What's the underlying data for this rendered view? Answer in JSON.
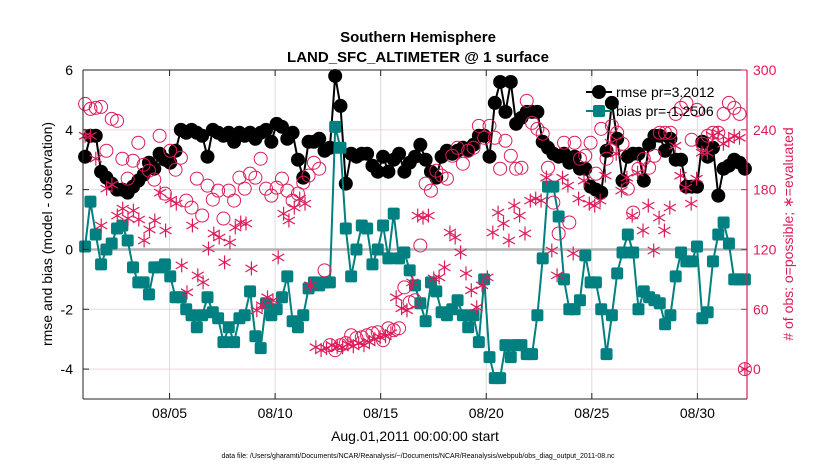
{
  "chart_data": {
    "type": "line",
    "title": [
      "Southern Hemisphere",
      "LAND_SFC_ALTIMETER @ 1 surface"
    ],
    "xlabel": "Aug.01,2011 00:00:00 start",
    "ylabel": "rmse and bias (model - observation)",
    "ylabel_right": "# of obs: o=possible; ∗=evaluated",
    "footer": "data file: /Users/gharamti/Documents/NCAR/Reanalysis/~/Documents/NCAR/Reanalysis/webpub/obs_diag_output_2011-08.nc",
    "x_unit": "days since Aug.01,2011 00:00:00",
    "xlim": [
      -0.1,
      31.35
    ],
    "x_range_days": [
      0,
      31.25
    ],
    "x_ticks": [
      {
        "day": 4,
        "label": "08/05"
      },
      {
        "day": 9,
        "label": "08/10"
      },
      {
        "day": 14,
        "label": "08/15"
      },
      {
        "day": 19,
        "label": "08/20"
      },
      {
        "day": 24,
        "label": "08/25"
      },
      {
        "day": 29,
        "label": "08/30"
      }
    ],
    "ylim": [
      -5,
      6
    ],
    "y_ticks": [
      -4,
      -2,
      0,
      2,
      4,
      6
    ],
    "ylim_right": [
      -30,
      300
    ],
    "y_ticks_right": [
      0,
      60,
      120,
      180,
      240,
      300
    ],
    "grid": true,
    "legend_position": "top-right",
    "colors": {
      "rmse": "#000000",
      "bias": "#008080",
      "counts": "#dc1c5a",
      "zero_line": "#b4b4b4"
    },
    "series": [
      {
        "name": "rmse",
        "legend": "rmse pr=3.2012",
        "axis": "left",
        "marker": "circle",
        "values": [
          3.1,
          3.8,
          3.8,
          2.6,
          2.4,
          2.2,
          2.0,
          2.0,
          1.9,
          2.1,
          2.3,
          2.5,
          2.9,
          2.7,
          3.2,
          3.0,
          2.9,
          3.3,
          4.0,
          3.9,
          4.0,
          3.9,
          3.8,
          3.1,
          4.0,
          3.9,
          3.8,
          3.9,
          3.6,
          3.9,
          3.8,
          3.9,
          3.7,
          3.9,
          4.0,
          3.6,
          4.2,
          4.1,
          3.7,
          3.9,
          3.0,
          2.4,
          3.6,
          3.6,
          3.7,
          3.3,
          3.4,
          5.8,
          4.8,
          2.2,
          3.2,
          3.1,
          3.2,
          3.2,
          2.8,
          2.6,
          3.1,
          2.6,
          3.0,
          3.2,
          2.6,
          2.9,
          3.1,
          3.5,
          3.0,
          2.6,
          2.4,
          3.1,
          3.3,
          3.2,
          3.3,
          3.4,
          3.3,
          3.5,
          3.8,
          3.8,
          3.1,
          4.9,
          5.6,
          4.6,
          5.6,
          4.2,
          4.4,
          4.6,
          4.6,
          4.6,
          3.6,
          3.4,
          3.2,
          3.1,
          3.2,
          2.9,
          3.1,
          2.7,
          2.7,
          2.1,
          2.0,
          1.9,
          3.3,
          4.9,
          3.7,
          2.3,
          3.1,
          3.2,
          3.2,
          2.3,
          3.5,
          3.8,
          3.8,
          3.3,
          3.7,
          3.0,
          3.0,
          2.1,
          2.1,
          2.1,
          3.6,
          3.1,
          3.4,
          1.8,
          2.7,
          2.8,
          3.0,
          2.9,
          2.7
        ]
      },
      {
        "name": "bias",
        "legend": "bias pr=-1.2506",
        "axis": "left",
        "marker": "square",
        "values": [
          0.1,
          1.6,
          0.5,
          -0.5,
          0.0,
          0.2,
          0.7,
          0.8,
          0.3,
          -0.6,
          -1.1,
          -1.1,
          -1.5,
          -0.6,
          -0.6,
          -0.5,
          -0.9,
          -1.6,
          -1.6,
          -2.0,
          -2.2,
          -2.6,
          -2.2,
          -1.6,
          -2.1,
          -2.3,
          -3.1,
          -2.6,
          -3.1,
          -2.3,
          -2.2,
          -1.4,
          -2.9,
          -3.3,
          -1.8,
          -2.2,
          -2.0,
          -1.6,
          -0.9,
          -2.4,
          -2.6,
          -2.2,
          -1.3,
          -1.1,
          -1.2,
          -1.1,
          -1.1,
          4.1,
          3.4,
          0.7,
          -0.9,
          0.0,
          0.8,
          0.7,
          -0.5,
          0.0,
          0.8,
          -0.3,
          1.2,
          -0.3,
          -0.1,
          -0.7,
          -1.2,
          -1.8,
          -2.4,
          -1.1,
          -1.4,
          -2.1,
          -2.2,
          -2.0,
          -1.7,
          -2.2,
          -2.6,
          -2.2,
          -3.1,
          -1.0,
          -3.6,
          -4.3,
          -4.3,
          -3.2,
          -3.6,
          -3.2,
          -3.2,
          -3.5,
          -3.5,
          -2.2,
          -0.3,
          2.1,
          2.1,
          1.1,
          -1.0,
          -2.0,
          -2.0,
          -1.7,
          -0.2,
          -1.1,
          -1.1,
          -2.0,
          -3.5,
          -2.2,
          -0.8,
          -0.1,
          0.5,
          -0.1,
          -2.0,
          -1.4,
          -1.6,
          -1.7,
          -1.8,
          -2.5,
          -2.2,
          -0.9,
          -0.1,
          -0.4,
          -0.4,
          0.1,
          -2.3,
          -2.1,
          -0.4,
          0.5,
          0.9,
          0.2,
          -1.0,
          -1.0,
          -1.0
        ]
      },
      {
        "name": "possible",
        "axis": "right",
        "marker": "open-circle",
        "values": [
          266,
          261,
          262,
          263,
          219,
          251,
          249,
          211,
          191,
          209,
          227,
          205,
          199,
          190,
          234,
          176,
          219,
          200,
          212,
          169,
          162,
          191,
          154,
          184,
          170,
          179,
          151,
          179,
          169,
          192,
          181,
          196,
          192,
          211,
          181,
          174,
          182,
          191,
          179,
          169,
          176,
          187,
          194,
          207,
          201,
          99,
          24,
          19,
          24,
          26,
          34,
          31,
          32,
          34,
          36,
          37,
          29,
          41,
          39,
          41,
          82,
          67,
          69,
          124,
          186,
          179,
          199,
          194,
          191,
          214,
          222,
          206,
          219,
          222,
          244,
          232,
          244,
          232,
          201,
          229,
          214,
          201,
          202,
          269,
          247,
          241,
          236,
          202,
          167,
          136,
          227,
          147,
          227,
          211,
          214,
          227,
          196,
          241,
          211,
          244,
          237,
          226,
          181,
          157,
          201,
          211,
          202,
          214,
          237,
          237,
          237,
          256,
          262,
          267,
          230,
          260,
          226,
          234,
          237,
          237,
          256,
          267,
          262,
          256,
          0
        ]
      },
      {
        "name": "evaluated",
        "axis": "right",
        "marker": "asterisk",
        "values": [
          234,
          234,
          211,
          144,
          181,
          185,
          154,
          161,
          151,
          159,
          150,
          129,
          140,
          149,
          177,
          139,
          170,
          166,
          104,
          77,
          144,
          94,
          87,
          121,
          136,
          132,
          107,
          127,
          142,
          147,
          146,
          101,
          59,
          64,
          72,
          69,
          112,
          156,
          149,
          162,
          171,
          166,
          84,
          22,
          19,
          21,
          24,
          22,
          22,
          25,
          23,
          26,
          24,
          27,
          30,
          32,
          33,
          36,
          72,
          61,
          59,
          87,
          154,
          152,
          154,
          91,
          92,
          102,
          137,
          132,
          117,
          96,
          79,
          62,
          84,
          92,
          137,
          157,
          146,
          129,
          164,
          154,
          136,
          169,
          171,
          169,
          192,
          119,
          94,
          192,
          184,
          116,
          171,
          189,
          166,
          164,
          169,
          194,
          227,
          216,
          179,
          192,
          154,
          197,
          139,
          164,
          119,
          152,
          139,
          162,
          224,
          194,
          182,
          166,
          191,
          217,
          217,
          234,
          237,
          226,
          230,
          234,
          232,
          0
        ]
      }
    ]
  }
}
